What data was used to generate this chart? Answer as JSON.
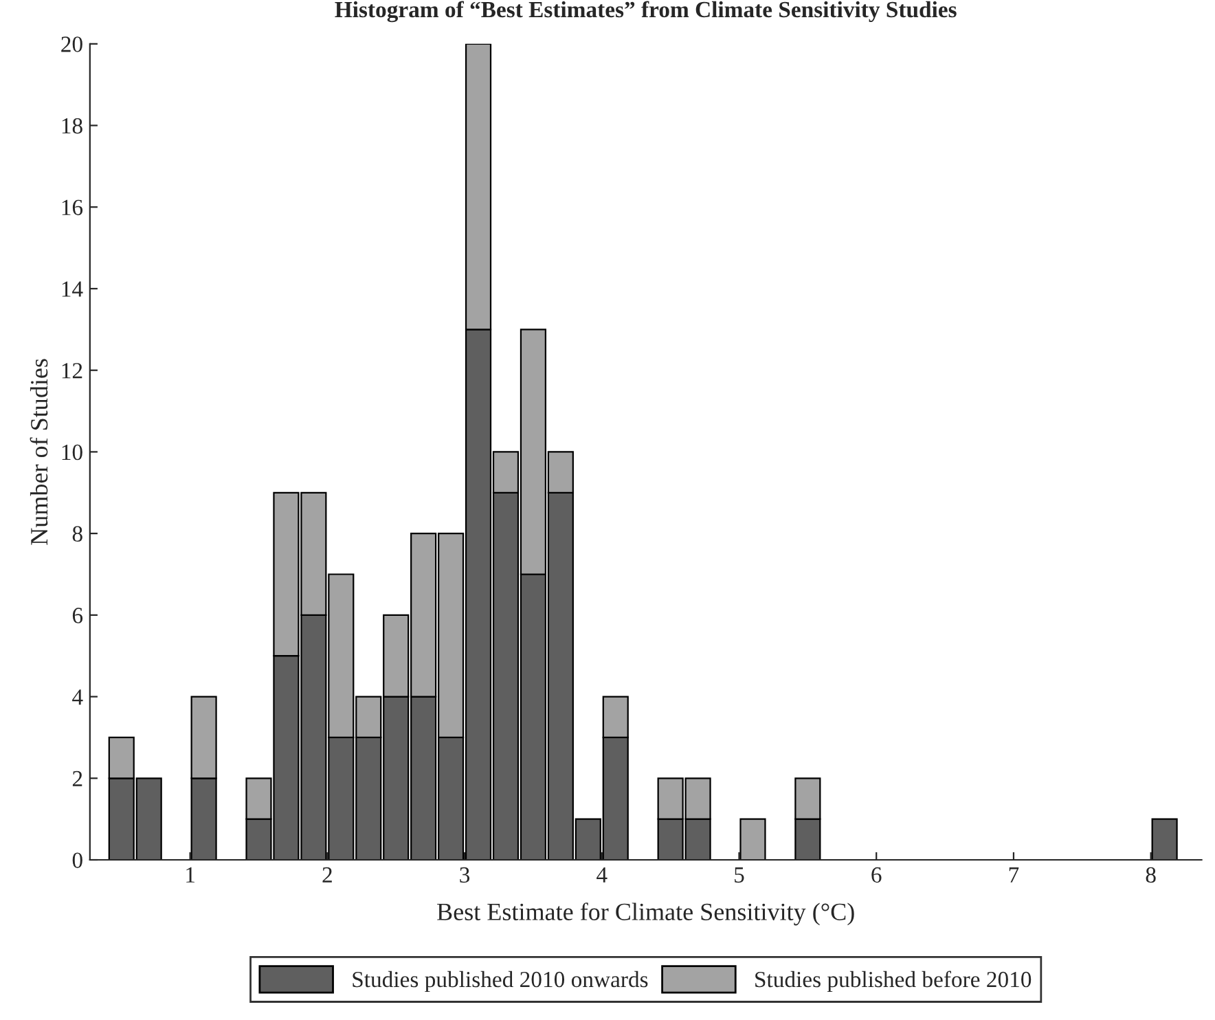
{
  "chart_data": {
    "type": "bar",
    "stacked": true,
    "title": "Histogram of “Best Estimates” from Climate Sensitivity Studies",
    "xlabel": "Best Estimate for Climate Sensitivity (°C)",
    "ylabel": "Number of Studies",
    "x": [
      0.5,
      0.7,
      1.1,
      1.5,
      1.7,
      1.9,
      2.1,
      2.3,
      2.5,
      2.7,
      2.9,
      3.1,
      3.3,
      3.5,
      3.7,
      3.9,
      4.1,
      4.5,
      4.7,
      5.1,
      5.5,
      8.1
    ],
    "series": [
      {
        "name": "Studies published 2010 onwards",
        "color": "#5f5f5f",
        "values": [
          2,
          2,
          2,
          1,
          5,
          6,
          3,
          3,
          4,
          4,
          3,
          13,
          9,
          7,
          9,
          1,
          3,
          1,
          1,
          null,
          1,
          1
        ]
      },
      {
        "name": "Studies published before 2010",
        "color": "#a3a3a3",
        "values": [
          1,
          null,
          2,
          1,
          4,
          3,
          4,
          1,
          2,
          4,
          5,
          7,
          1,
          6,
          1,
          null,
          1,
          1,
          1,
          1,
          1,
          null
        ]
      }
    ],
    "xlim": [
      0.27,
      8.37
    ],
    "xticks": [
      1,
      2,
      3,
      4,
      5,
      6,
      7,
      8
    ],
    "ylim": [
      0,
      20
    ],
    "yticks": [
      0,
      2,
      4,
      6,
      8,
      10,
      12,
      14,
      16,
      18,
      20
    ],
    "grid": false,
    "legend": "bottom"
  }
}
